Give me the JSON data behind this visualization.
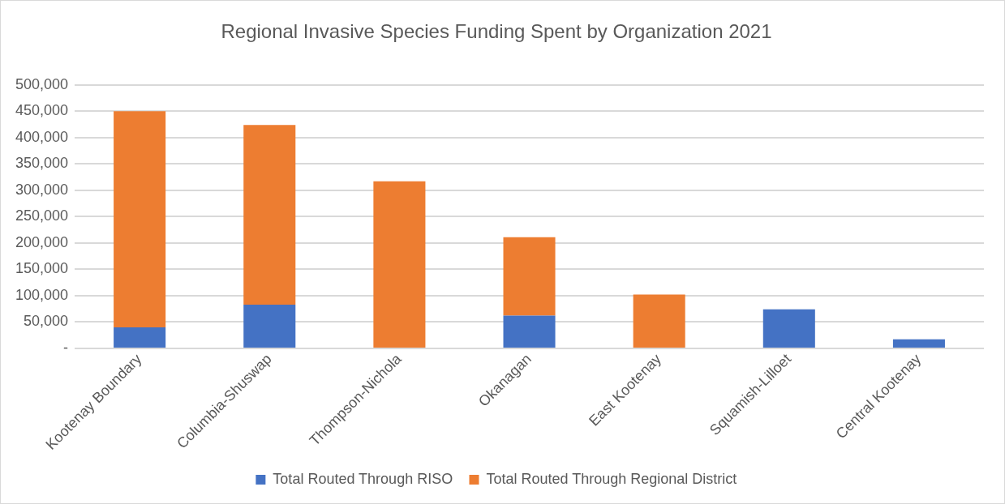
{
  "chart_data": {
    "type": "bar",
    "title": "Regional Invasive Species Funding Spent by Organization 2021",
    "categories": [
      "Kootenay Boundary",
      "Columbia-Shuswap",
      "Thompson-Nichola",
      "Okanagan",
      "East Kootenay",
      "Squamish-Lilloet",
      "Central Kootenay"
    ],
    "stacked": true,
    "series": [
      {
        "name": "Total Routed Through RISO",
        "color": "#4472c4",
        "values": [
          40000,
          83000,
          null,
          62000,
          null,
          74000,
          17000
        ]
      },
      {
        "name": "Total Routed Through Regional District",
        "color": "#ed7d31",
        "values": [
          410000,
          341000,
          317000,
          149000,
          102000,
          null,
          null
        ]
      }
    ],
    "ylim": [
      0,
      500000
    ],
    "yticks": [
      {
        "value": 0,
        "label": "-"
      },
      {
        "value": 50000,
        "label": "50,000"
      },
      {
        "value": 100000,
        "label": "100,000"
      },
      {
        "value": 150000,
        "label": "150,000"
      },
      {
        "value": 200000,
        "label": "200,000"
      },
      {
        "value": 250000,
        "label": "250,000"
      },
      {
        "value": 300000,
        "label": "300,000"
      },
      {
        "value": 350000,
        "label": "350,000"
      },
      {
        "value": 400000,
        "label": "400,000"
      },
      {
        "value": 450000,
        "label": "450,000"
      },
      {
        "value": 500000,
        "label": "500,000"
      }
    ],
    "grid": "y",
    "legend": "bottom"
  }
}
